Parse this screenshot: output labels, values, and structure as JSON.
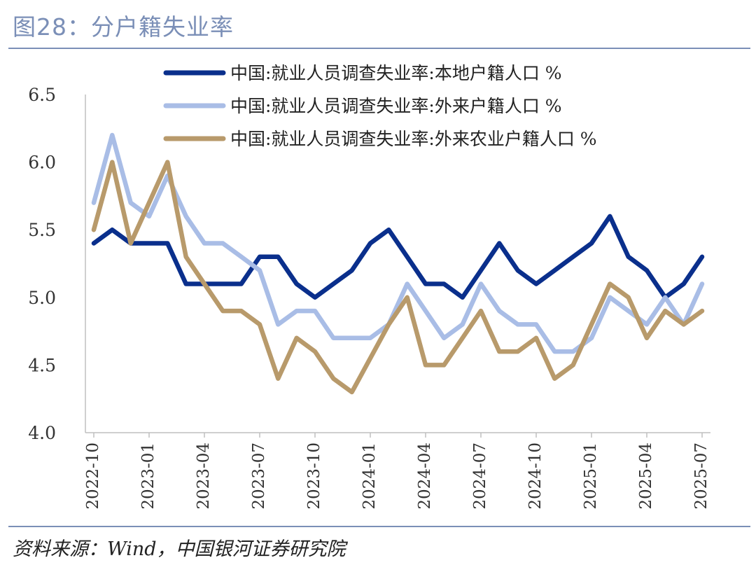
{
  "header": {
    "title": "图28：分户籍失业率"
  },
  "footer": {
    "source": "资料来源：Wind，中国银河证券研究院"
  },
  "colors": {
    "rule": "#7b8fb7",
    "axis": "#bfbfbf",
    "text": "#333333"
  },
  "chart_data": {
    "type": "line",
    "title": "",
    "xlabel": "",
    "ylabel": "",
    "ylim": [
      4.0,
      6.5
    ],
    "y_ticks": [
      "4.0",
      "4.5",
      "5.0",
      "5.5",
      "6.0",
      "6.5"
    ],
    "grid": false,
    "legend_placement": "top-right",
    "x": [
      "2022-10",
      "2022-11",
      "2022-12",
      "2023-01",
      "2023-02",
      "2023-03",
      "2023-04",
      "2023-05",
      "2023-06",
      "2023-07",
      "2023-08",
      "2023-09",
      "2023-10",
      "2023-11",
      "2023-12",
      "2024-01",
      "2024-02",
      "2024-03",
      "2024-04",
      "2024-05",
      "2024-06",
      "2024-07",
      "2024-08",
      "2024-09",
      "2024-10",
      "2024-11",
      "2024-12",
      "2025-01",
      "2025-02",
      "2025-03",
      "2025-04",
      "2025-05",
      "2025-06",
      "2025-07"
    ],
    "x_tick_labels": [
      "2022-10",
      "2023-01",
      "2023-04",
      "2023-07",
      "2023-10",
      "2024-01",
      "2024-04",
      "2024-07",
      "2024-10",
      "2025-01",
      "2025-04",
      "2025-07"
    ],
    "series": [
      {
        "name": "中国:就业人员调查失业率:本地户籍人口 %",
        "color": "#0a2f8c",
        "values": [
          5.4,
          5.5,
          5.4,
          5.4,
          5.4,
          5.1,
          5.1,
          5.1,
          5.1,
          5.3,
          5.3,
          5.1,
          5.0,
          5.1,
          5.2,
          5.4,
          5.5,
          5.3,
          5.1,
          5.1,
          5.0,
          5.2,
          5.4,
          5.2,
          5.1,
          5.2,
          5.3,
          5.4,
          5.6,
          5.3,
          5.2,
          5.0,
          5.1,
          5.3
        ]
      },
      {
        "name": "中国:就业人员调查失业率:外来户籍人口 %",
        "color": "#a9bde6",
        "values": [
          5.7,
          6.2,
          5.7,
          5.6,
          5.9,
          5.6,
          5.4,
          5.4,
          5.3,
          5.2,
          4.8,
          4.9,
          4.9,
          4.7,
          4.7,
          4.7,
          4.8,
          5.1,
          4.9,
          4.7,
          4.8,
          5.1,
          4.9,
          4.8,
          4.8,
          4.6,
          4.6,
          4.7,
          5.0,
          4.9,
          4.8,
          5.0,
          4.8,
          5.1
        ]
      },
      {
        "name": "中国:就业人员调查失业率:外来农业户籍人口 %",
        "color": "#b89a6b",
        "values": [
          5.5,
          6.0,
          5.4,
          5.7,
          6.0,
          5.3,
          5.1,
          4.9,
          4.9,
          4.8,
          4.4,
          4.7,
          4.6,
          4.4,
          4.3,
          4.55,
          4.8,
          5.0,
          4.5,
          4.5,
          4.7,
          4.9,
          4.6,
          4.6,
          4.7,
          4.4,
          4.5,
          4.8,
          5.1,
          5.0,
          4.7,
          4.9,
          4.8,
          4.9
        ]
      }
    ]
  }
}
